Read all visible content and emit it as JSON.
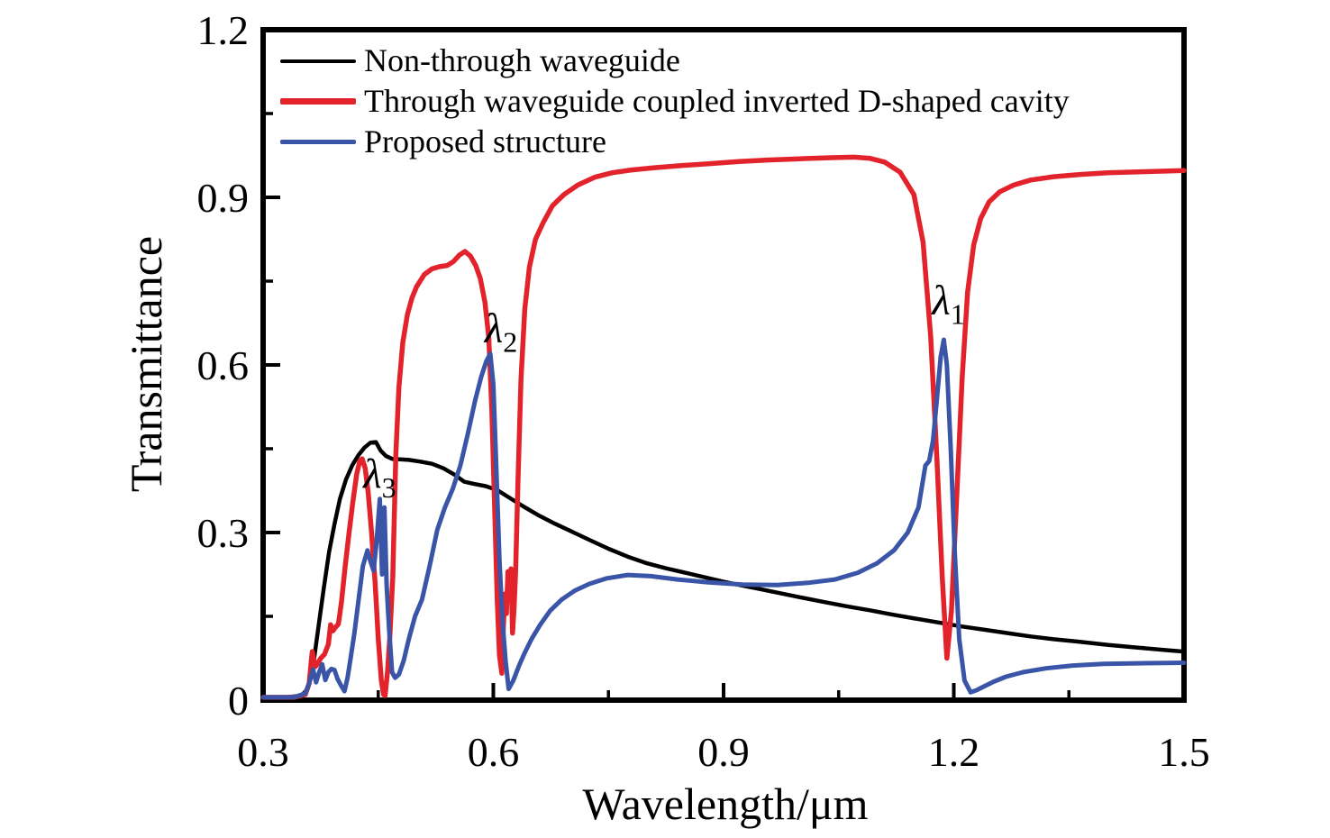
{
  "figure": {
    "background_color": "#ffffff",
    "axis_color": "#000000"
  },
  "chart_data": {
    "type": "line",
    "title": "",
    "xlabel": "Wavelength/μm",
    "ylabel": "Transmittance",
    "xlim": [
      0.3,
      1.5
    ],
    "ylim": [
      0,
      1.2
    ],
    "x_ticks": [
      0.3,
      0.6,
      0.9,
      1.2,
      1.5
    ],
    "x_tick_labels": [
      "0.3",
      "0.6",
      "0.9",
      "1.2",
      "1.5"
    ],
    "x_minor_ticks": [
      0.45,
      0.75,
      1.05,
      1.35
    ],
    "y_ticks": [
      0,
      0.3,
      0.6,
      0.9,
      1.2
    ],
    "y_tick_labels": [
      "0",
      "0.3",
      "0.6",
      "0.9",
      "1.2"
    ],
    "y_minor_ticks": [
      0.15,
      0.45,
      0.75,
      1.05
    ],
    "grid": false,
    "legend_position": "top-left-inside",
    "annotations": [
      {
        "label": "λ",
        "subscript": "1",
        "x": 1.193,
        "y": 0.715
      },
      {
        "label": "λ",
        "subscript": "2",
        "x": 0.61,
        "y": 0.665
      },
      {
        "label": "λ",
        "subscript": "3",
        "x": 0.452,
        "y": 0.405
      }
    ],
    "series": [
      {
        "name": "Non-through waveguide",
        "color": "#000000",
        "x": [
          0.3,
          0.33,
          0.35,
          0.358,
          0.365,
          0.372,
          0.379,
          0.386,
          0.393,
          0.4,
          0.408,
          0.416,
          0.424,
          0.432,
          0.44,
          0.447,
          0.453,
          0.46,
          0.468,
          0.478,
          0.49,
          0.505,
          0.52,
          0.535,
          0.55,
          0.562,
          0.575,
          0.59,
          0.605,
          0.62,
          0.64,
          0.66,
          0.68,
          0.7,
          0.725,
          0.75,
          0.775,
          0.8,
          0.825,
          0.85,
          0.875,
          0.9,
          0.925,
          0.95,
          0.975,
          1.0,
          1.03,
          1.06,
          1.09,
          1.12,
          1.15,
          1.18,
          1.21,
          1.24,
          1.27,
          1.3,
          1.33,
          1.36,
          1.4,
          1.44,
          1.48,
          1.5
        ],
        "y": [
          0.005,
          0.005,
          0.008,
          0.02,
          0.06,
          0.13,
          0.2,
          0.265,
          0.315,
          0.36,
          0.395,
          0.42,
          0.438,
          0.452,
          0.461,
          0.462,
          0.447,
          0.437,
          0.432,
          0.431,
          0.43,
          0.427,
          0.423,
          0.415,
          0.403,
          0.391,
          0.387,
          0.383,
          0.376,
          0.363,
          0.346,
          0.33,
          0.316,
          0.303,
          0.287,
          0.271,
          0.257,
          0.245,
          0.236,
          0.228,
          0.22,
          0.212,
          0.205,
          0.198,
          0.191,
          0.184,
          0.176,
          0.168,
          0.161,
          0.153,
          0.146,
          0.139,
          0.132,
          0.126,
          0.12,
          0.114,
          0.109,
          0.105,
          0.099,
          0.094,
          0.089,
          0.087
        ]
      },
      {
        "name": "Through waveguide coupled inverted D-shaped cavity",
        "color": "#e2232b",
        "x": [
          0.3,
          0.34,
          0.355,
          0.36,
          0.364,
          0.368,
          0.371,
          0.375,
          0.38,
          0.385,
          0.388,
          0.391,
          0.394,
          0.398,
          0.402,
          0.407,
          0.412,
          0.417,
          0.422,
          0.426,
          0.429,
          0.433,
          0.437,
          0.441,
          0.446,
          0.45,
          0.454,
          0.457,
          0.459,
          0.462,
          0.465,
          0.469,
          0.473,
          0.477,
          0.482,
          0.488,
          0.494,
          0.5,
          0.51,
          0.52,
          0.53,
          0.54,
          0.548,
          0.556,
          0.563,
          0.57,
          0.577,
          0.583,
          0.589,
          0.594,
          0.598,
          0.602,
          0.605,
          0.608,
          0.611,
          0.613,
          0.615,
          0.617,
          0.619,
          0.621,
          0.623,
          0.625,
          0.627,
          0.629,
          0.632,
          0.636,
          0.641,
          0.647,
          0.655,
          0.665,
          0.677,
          0.692,
          0.71,
          0.732,
          0.755,
          0.78,
          0.81,
          0.845,
          0.88,
          0.92,
          0.96,
          1.0,
          1.04,
          1.07,
          1.09,
          1.11,
          1.13,
          1.148,
          1.16,
          1.17,
          1.178,
          1.185,
          1.191,
          1.197,
          1.204,
          1.211,
          1.218,
          1.226,
          1.235,
          1.246,
          1.26,
          1.278,
          1.3,
          1.33,
          1.365,
          1.4,
          1.45,
          1.5
        ],
        "y": [
          0.005,
          0.005,
          0.01,
          0.03,
          0.087,
          0.06,
          0.065,
          0.075,
          0.082,
          0.1,
          0.135,
          0.124,
          0.13,
          0.136,
          0.175,
          0.24,
          0.3,
          0.355,
          0.405,
          0.428,
          0.432,
          0.415,
          0.37,
          0.305,
          0.21,
          0.11,
          0.035,
          0.01,
          0.008,
          0.05,
          0.11,
          0.22,
          0.44,
          0.56,
          0.64,
          0.69,
          0.72,
          0.74,
          0.762,
          0.772,
          0.776,
          0.778,
          0.785,
          0.797,
          0.803,
          0.795,
          0.778,
          0.755,
          0.713,
          0.65,
          0.52,
          0.33,
          0.18,
          0.08,
          0.048,
          0.13,
          0.19,
          0.155,
          0.23,
          0.18,
          0.235,
          0.12,
          0.165,
          0.23,
          0.39,
          0.575,
          0.7,
          0.775,
          0.825,
          0.855,
          0.885,
          0.905,
          0.922,
          0.936,
          0.944,
          0.949,
          0.953,
          0.957,
          0.96,
          0.964,
          0.967,
          0.969,
          0.971,
          0.972,
          0.97,
          0.963,
          0.945,
          0.905,
          0.82,
          0.65,
          0.43,
          0.22,
          0.075,
          0.16,
          0.37,
          0.58,
          0.73,
          0.815,
          0.862,
          0.892,
          0.91,
          0.922,
          0.931,
          0.937,
          0.941,
          0.944,
          0.946,
          0.948
        ]
      },
      {
        "name": "Proposed structure",
        "color": "#3a55a7",
        "x": [
          0.3,
          0.34,
          0.355,
          0.36,
          0.365,
          0.369,
          0.373,
          0.377,
          0.381,
          0.385,
          0.389,
          0.393,
          0.397,
          0.402,
          0.406,
          0.41,
          0.414,
          0.419,
          0.424,
          0.43,
          0.436,
          0.44,
          0.444,
          0.448,
          0.452,
          0.455,
          0.458,
          0.461,
          0.464,
          0.468,
          0.472,
          0.477,
          0.483,
          0.49,
          0.498,
          0.507,
          0.517,
          0.527,
          0.537,
          0.547,
          0.557,
          0.567,
          0.576,
          0.584,
          0.591,
          0.596,
          0.6,
          0.604,
          0.608,
          0.612,
          0.616,
          0.62,
          0.626,
          0.633,
          0.641,
          0.65,
          0.661,
          0.674,
          0.689,
          0.706,
          0.725,
          0.748,
          0.775,
          0.805,
          0.84,
          0.88,
          0.925,
          0.97,
          1.01,
          1.045,
          1.075,
          1.1,
          1.122,
          1.14,
          1.154,
          1.163,
          1.168,
          1.173,
          1.178,
          1.183,
          1.187,
          1.191,
          1.196,
          1.201,
          1.207,
          1.214,
          1.222,
          1.23,
          1.24,
          1.252,
          1.268,
          1.29,
          1.32,
          1.355,
          1.395,
          1.44,
          1.5
        ],
        "y": [
          0.005,
          0.005,
          0.012,
          0.03,
          0.055,
          0.032,
          0.05,
          0.064,
          0.036,
          0.05,
          0.056,
          0.054,
          0.038,
          0.025,
          0.016,
          0.04,
          0.075,
          0.12,
          0.175,
          0.24,
          0.268,
          0.248,
          0.232,
          0.285,
          0.36,
          0.225,
          0.345,
          0.205,
          0.13,
          0.05,
          0.04,
          0.046,
          0.07,
          0.11,
          0.15,
          0.18,
          0.24,
          0.305,
          0.345,
          0.378,
          0.42,
          0.478,
          0.535,
          0.578,
          0.607,
          0.62,
          0.565,
          0.41,
          0.25,
          0.14,
          0.07,
          0.02,
          0.035,
          0.06,
          0.085,
          0.11,
          0.135,
          0.16,
          0.18,
          0.196,
          0.208,
          0.218,
          0.224,
          0.222,
          0.216,
          0.211,
          0.207,
          0.206,
          0.21,
          0.216,
          0.228,
          0.245,
          0.268,
          0.3,
          0.345,
          0.42,
          0.428,
          0.465,
          0.54,
          0.615,
          0.645,
          0.6,
          0.45,
          0.27,
          0.11,
          0.035,
          0.014,
          0.018,
          0.025,
          0.033,
          0.042,
          0.05,
          0.057,
          0.062,
          0.065,
          0.066,
          0.067
        ]
      }
    ]
  }
}
